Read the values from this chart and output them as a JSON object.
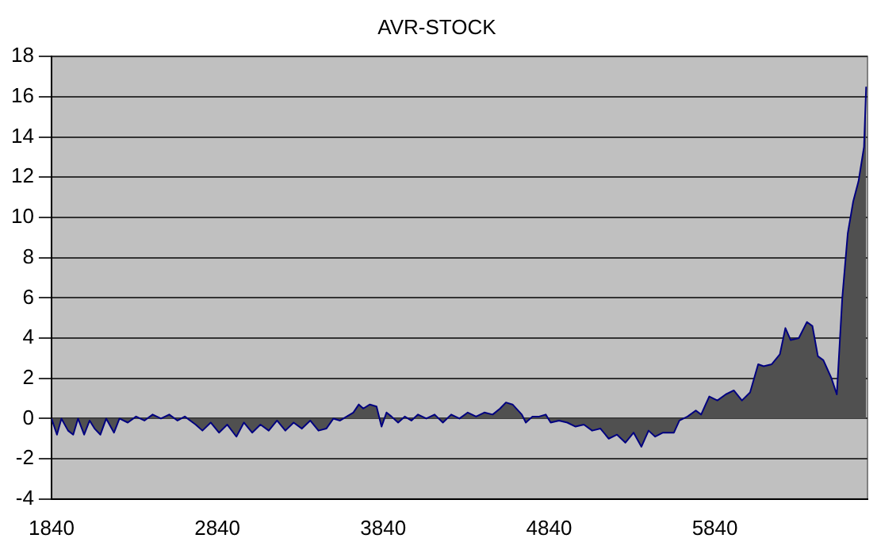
{
  "chart_data": {
    "type": "area",
    "title": "AVR-STOCK",
    "x": [
      1840,
      1873,
      1900,
      1940,
      1971,
      2000,
      2037,
      2070,
      2100,
      2135,
      2170,
      2217,
      2250,
      2300,
      2350,
      2400,
      2450,
      2500,
      2550,
      2600,
      2644,
      2709,
      2750,
      2800,
      2850,
      2900,
      2955,
      3000,
      3050,
      3100,
      3150,
      3200,
      3250,
      3300,
      3350,
      3400,
      3450,
      3497,
      3540,
      3580,
      3620,
      3660,
      3693,
      3720,
      3760,
      3800,
      3830,
      3860,
      3890,
      3930,
      3970,
      4010,
      4050,
      4100,
      4150,
      4200,
      4250,
      4300,
      4350,
      4400,
      4450,
      4500,
      4545,
      4580,
      4620,
      4676,
      4700,
      4740,
      4780,
      4820,
      4850,
      4900,
      4950,
      5000,
      5050,
      5100,
      5150,
      5200,
      5250,
      5300,
      5350,
      5397,
      5440,
      5480,
      5527,
      5593,
      5626,
      5675,
      5725,
      5757,
      5806,
      5855,
      5905,
      5954,
      6003,
      6052,
      6101,
      6134,
      6183,
      6232,
      6265,
      6297,
      6346,
      6395,
      6428,
      6461,
      6494,
      6543,
      6575,
      6608,
      6641,
      6674,
      6706,
      6739,
      6752
    ],
    "series": [
      {
        "color": "#000080",
        "values": [
          0,
          -0.8,
          0,
          -0.6,
          -0.8,
          0,
          -0.8,
          -0.1,
          -0.5,
          -0.8,
          0,
          -0.7,
          0,
          -0.2,
          0.1,
          -0.1,
          0.2,
          0,
          0.2,
          -0.1,
          0.1,
          -0.3,
          -0.6,
          -0.2,
          -0.7,
          -0.3,
          -0.9,
          -0.2,
          -0.7,
          -0.3,
          -0.6,
          -0.1,
          -0.6,
          -0.2,
          -0.5,
          -0.1,
          -0.6,
          -0.5,
          0,
          -0.1,
          0.1,
          0.3,
          0.7,
          0.5,
          0.7,
          0.6,
          -0.4,
          0.3,
          0.1,
          -0.2,
          0.1,
          -0.1,
          0.2,
          0,
          0.2,
          -0.2,
          0.2,
          0,
          0.3,
          0.1,
          0.3,
          0.2,
          0.5,
          0.8,
          0.7,
          0.2,
          -0.2,
          0.1,
          0.1,
          0.2,
          -0.2,
          -0.1,
          -0.2,
          -0.4,
          -0.3,
          -0.6,
          -0.5,
          -1.0,
          -0.8,
          -1.2,
          -0.7,
          -1.4,
          -0.6,
          -0.9,
          -0.7,
          -0.7,
          -0.1,
          0.1,
          0.4,
          0.2,
          1.1,
          0.9,
          1.2,
          1.4,
          0.9,
          1.3,
          2.7,
          2.6,
          2.7,
          3.2,
          4.5,
          3.9,
          4.0,
          4.8,
          4.6,
          3.1,
          2.9,
          2.0,
          1.2,
          6.0,
          9.2,
          10.8,
          11.8,
          13.5,
          16.5
        ]
      }
    ],
    "xlim": [
      1840,
      6760
    ],
    "xticks": [
      1840,
      2840,
      3840,
      4840,
      5840
    ],
    "ylim": [
      -4,
      18
    ],
    "yticks": [
      -4,
      -2,
      0,
      2,
      4,
      6,
      8,
      10,
      12,
      14,
      16,
      18
    ],
    "grid": "y",
    "legend": false
  }
}
